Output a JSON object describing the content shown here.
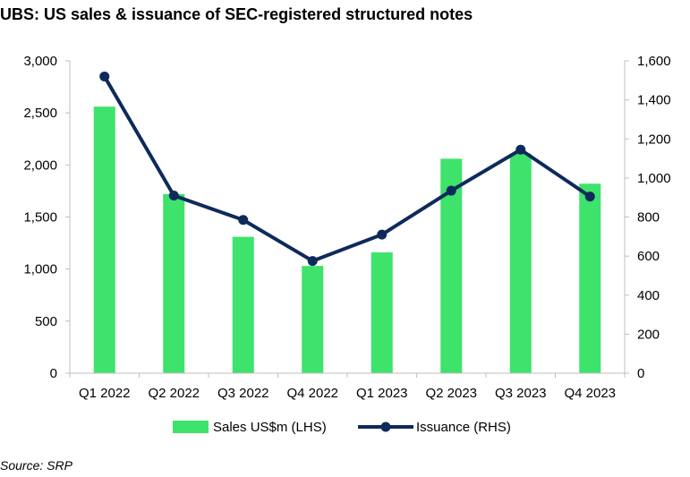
{
  "title": "UBS: US sales & issuance of SEC-registered structured notes",
  "source": "Source: SRP",
  "colors": {
    "bars": "#3de36a",
    "line": "#0e2a5c",
    "axis": "#bfbfbf"
  },
  "chart_data": {
    "type": "bar",
    "categories": [
      "Q1 2022",
      "Q2 2022",
      "Q3 2022",
      "Q4 2022",
      "Q1 2023",
      "Q2 2023",
      "Q3 2023",
      "Q4 2023"
    ],
    "series": [
      {
        "name": "Sales US$m (LHS)",
        "type": "bar",
        "axis": "left",
        "values": [
          2560,
          1720,
          1310,
          1030,
          1160,
          2060,
          2110,
          1820
        ]
      },
      {
        "name": "Issuance (RHS)",
        "type": "line",
        "axis": "right",
        "values": [
          1520,
          910,
          785,
          575,
          710,
          935,
          1145,
          905
        ]
      }
    ],
    "ylim_left": [
      0,
      3000
    ],
    "yticks_left": [
      "0",
      "500",
      "1,000",
      "1,500",
      "2,000",
      "2,500",
      "3,000"
    ],
    "ylim_right": [
      0,
      1600
    ],
    "yticks_right": [
      "0",
      "200",
      "400",
      "600",
      "800",
      "1,000",
      "1,200",
      "1,400",
      "1,600"
    ],
    "grid": false,
    "legend_position": "bottom"
  }
}
